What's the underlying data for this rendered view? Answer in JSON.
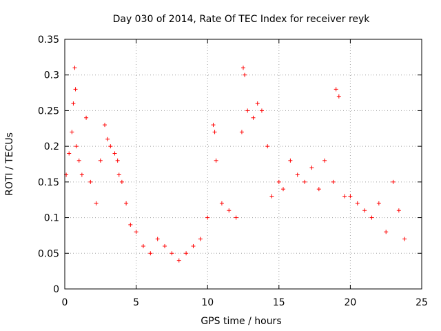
{
  "chart_data": {
    "type": "scatter",
    "title": "Day 030 of 2014, Rate Of TEC Index for receiver reyk",
    "xlabel": "GPS time / hours",
    "ylabel": "ROTI / TECUs",
    "xlim": [
      0,
      25
    ],
    "ylim": [
      0,
      0.35
    ],
    "xticks": [
      0,
      5,
      10,
      15,
      20,
      25
    ],
    "xtick_labels": [
      "0",
      "5",
      "10",
      "15",
      "20",
      "25"
    ],
    "yticks": [
      0,
      0.05,
      0.1,
      0.15,
      0.2,
      0.25,
      0.3,
      0.35
    ],
    "ytick_labels": [
      "0",
      "0.05",
      "0.1",
      "0.15",
      "0.2",
      "0.25",
      "0.3",
      "0.35"
    ],
    "grid": true,
    "marker": "+",
    "color": "#ff0000",
    "series": [
      {
        "name": "ROTI",
        "x": [
          0.1,
          0.3,
          0.5,
          0.6,
          0.7,
          0.75,
          0.8,
          1.0,
          1.2,
          1.5,
          1.8,
          2.2,
          2.5,
          2.8,
          3.0,
          3.2,
          3.5,
          3.7,
          3.8,
          4.0,
          4.3,
          4.6,
          5.0,
          5.5,
          6.0,
          6.5,
          7.0,
          7.5,
          8.0,
          8.5,
          9.0,
          9.5,
          10.0,
          10.4,
          10.5,
          10.6,
          11.0,
          11.5,
          12.0,
          12.4,
          12.5,
          12.6,
          12.8,
          13.2,
          13.5,
          13.8,
          14.2,
          14.5,
          15.0,
          15.3,
          15.8,
          16.3,
          16.8,
          17.3,
          17.8,
          18.2,
          18.8,
          19.0,
          19.2,
          19.6,
          20.0,
          20.5,
          21.0,
          21.5,
          22.0,
          22.5,
          23.0,
          23.4,
          23.8
        ],
        "y": [
          0.16,
          0.19,
          0.22,
          0.26,
          0.31,
          0.28,
          0.2,
          0.18,
          0.16,
          0.24,
          0.15,
          0.12,
          0.18,
          0.23,
          0.21,
          0.2,
          0.19,
          0.18,
          0.16,
          0.15,
          0.12,
          0.09,
          0.08,
          0.06,
          0.05,
          0.07,
          0.06,
          0.05,
          0.04,
          0.05,
          0.06,
          0.07,
          0.1,
          0.23,
          0.22,
          0.18,
          0.12,
          0.11,
          0.1,
          0.22,
          0.31,
          0.3,
          0.25,
          0.24,
          0.26,
          0.25,
          0.2,
          0.13,
          0.15,
          0.14,
          0.18,
          0.16,
          0.15,
          0.17,
          0.14,
          0.18,
          0.15,
          0.28,
          0.27,
          0.13,
          0.13,
          0.12,
          0.11,
          0.1,
          0.12,
          0.08,
          0.15,
          0.11,
          0.07
        ]
      }
    ]
  }
}
